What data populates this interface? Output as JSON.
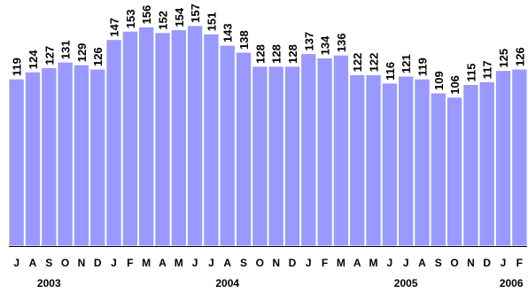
{
  "chart_data": {
    "type": "bar",
    "title": "",
    "xlabel": "",
    "ylabel": "",
    "ylim": [
      0,
      165
    ],
    "grid": false,
    "legend": "none",
    "bar_color": "#9999ff",
    "categories": [
      "J",
      "A",
      "S",
      "O",
      "N",
      "D",
      "J",
      "F",
      "M",
      "A",
      "M",
      "J",
      "J",
      "A",
      "S",
      "O",
      "N",
      "D",
      "J",
      "F",
      "M",
      "A",
      "M",
      "J",
      "J",
      "A",
      "S",
      "O",
      "N",
      "D",
      "J",
      "F"
    ],
    "values": [
      119,
      124,
      127,
      131,
      129,
      126,
      147,
      153,
      156,
      152,
      154,
      157,
      151,
      143,
      138,
      128,
      128,
      128,
      137,
      134,
      136,
      122,
      122,
      116,
      121,
      119,
      109,
      106,
      115,
      117,
      125,
      126
    ],
    "data_labels": [
      "119",
      "124",
      "127",
      "131",
      "129",
      "126",
      "147",
      "153",
      "156",
      "152",
      "154",
      "157",
      "151",
      "143",
      "138",
      "128",
      "128",
      "128",
      "137",
      "134",
      "136",
      "122",
      "122",
      "116",
      "121",
      "119",
      "109",
      "106",
      "115",
      "117",
      "125",
      "126"
    ],
    "year_labels": [
      {
        "text": "2003",
        "category_index": 2
      },
      {
        "text": "2004",
        "category_index": 13
      },
      {
        "text": "2005",
        "category_index": 24
      },
      {
        "text": "2006",
        "category_index": 30.5
      }
    ]
  }
}
